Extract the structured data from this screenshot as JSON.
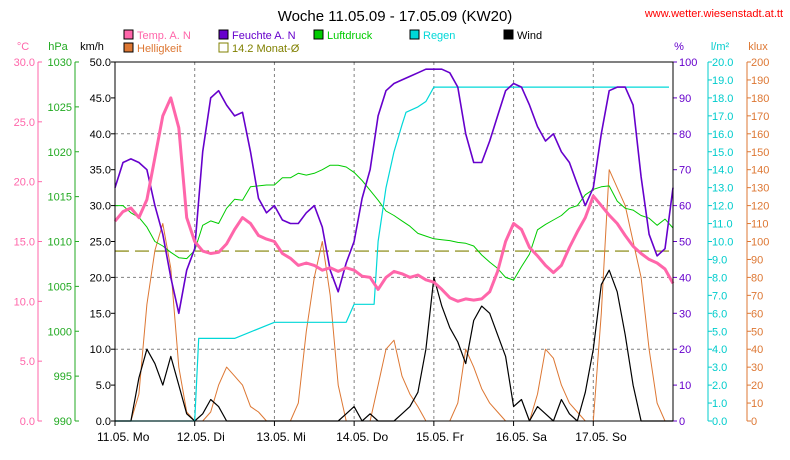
{
  "title": "Woche 11.05.09 - 17.05.09 (KW20)",
  "source_url": "www.wetter.wiesenstadt.at.tt",
  "legend": [
    {
      "label": "Temp. A. N",
      "color": "#ff66aa"
    },
    {
      "label": "Feuchte A. N",
      "color": "#6600cc"
    },
    {
      "label": "Luftdruck",
      "color": "#00cc00"
    },
    {
      "label": "Regen",
      "color": "#00d8d8"
    },
    {
      "label": "Wind",
      "color": "#000000"
    },
    {
      "label": "Helligkeit",
      "color": "#dd7733"
    },
    {
      "label": "14.2 Monat-Ø",
      "color": "#808000"
    }
  ],
  "axes": {
    "temp": {
      "unit": "°C",
      "color": "#ff66aa",
      "ticks": [
        "30.0",
        "25.0",
        "20.0",
        "15.0",
        "10.0",
        "5.0",
        "0.0"
      ]
    },
    "pressure": {
      "unit": "hPa",
      "color": "#22aa22",
      "ticks": [
        "1030",
        "1025",
        "1020",
        "1015",
        "1010",
        "1005",
        "1000",
        "995",
        "990"
      ]
    },
    "wind": {
      "unit": "km/h",
      "color": "#000000",
      "ticks": [
        "50.0",
        "45.0",
        "40.0",
        "35.0",
        "30.0",
        "25.0",
        "20.0",
        "15.0",
        "10.0",
        "5.0",
        "0.0"
      ]
    },
    "humidity": {
      "unit": "%",
      "color": "#6600cc",
      "ticks": [
        "100",
        "90",
        "80",
        "70",
        "60",
        "50",
        "40",
        "30",
        "20",
        "10",
        "0"
      ]
    },
    "rain": {
      "unit": "l/m²",
      "color": "#00cccc",
      "ticks": [
        "20.0",
        "19.0",
        "18.0",
        "17.0",
        "16.0",
        "15.0",
        "14.0",
        "13.0",
        "12.0",
        "11.0",
        "10.0",
        "9.0",
        "8.0",
        "7.0",
        "6.0",
        "5.0",
        "4.0",
        "3.0",
        "2.0",
        "1.0",
        "0.0"
      ]
    },
    "light": {
      "unit": "klux",
      "color": "#dd7733",
      "ticks": [
        "200",
        "190",
        "180",
        "170",
        "160",
        "150",
        "140",
        "130",
        "120",
        "110",
        "100",
        "90",
        "80",
        "70",
        "60",
        "50",
        "40",
        "30",
        "20",
        "10",
        "0"
      ]
    }
  },
  "x_labels": [
    "11.05. Mo",
    "12.05. Di",
    "13.05. Mi",
    "14.05. Do",
    "15.05. Fr",
    "16.05. Sa",
    "17.05. So"
  ],
  "chart_data": {
    "type": "line",
    "title": "Woche 11.05.09 - 17.05.09 (KW20)",
    "x_unit": "days since 11.05. 00:00",
    "xlim": [
      0,
      7
    ],
    "reference_line": {
      "label": "14.2 Monat-Ø",
      "axis": "temp",
      "value": 14.2
    },
    "series": [
      {
        "name": "Temp. A. N",
        "axis": "temp",
        "ylim": [
          0,
          30
        ],
        "x": [
          0,
          0.1,
          0.2,
          0.3,
          0.4,
          0.5,
          0.6,
          0.7,
          0.8,
          0.9,
          1.0,
          1.1,
          1.2,
          1.3,
          1.4,
          1.5,
          1.6,
          1.7,
          1.8,
          1.9,
          2.0,
          2.1,
          2.2,
          2.3,
          2.4,
          2.5,
          2.6,
          2.7,
          2.8,
          2.9,
          3.0,
          3.1,
          3.2,
          3.3,
          3.4,
          3.5,
          3.6,
          3.7,
          3.8,
          3.9,
          4.0,
          4.1,
          4.2,
          4.3,
          4.4,
          4.5,
          4.6,
          4.7,
          4.8,
          4.9,
          5.0,
          5.1,
          5.2,
          5.3,
          5.4,
          5.5,
          5.6,
          5.7,
          5.8,
          5.9,
          6.0,
          6.1,
          6.2,
          6.3,
          6.4,
          6.5,
          6.6,
          6.7,
          6.8,
          6.9,
          7.0
        ],
        "y": [
          16.7,
          17.5,
          17.8,
          17.0,
          18.5,
          22.0,
          25.5,
          27.0,
          24.5,
          17.0,
          15.0,
          14.2,
          14.0,
          14.1,
          14.8,
          16.0,
          17.0,
          16.5,
          15.5,
          15.2,
          15.0,
          14.0,
          13.6,
          13.0,
          13.2,
          13.0,
          12.6,
          12.8,
          12.5,
          12.8,
          12.6,
          12.1,
          12.0,
          11.0,
          12.0,
          12.5,
          12.3,
          12.0,
          12.2,
          11.8,
          11.6,
          11.0,
          10.3,
          10.0,
          10.2,
          10.1,
          10.2,
          10.8,
          12.5,
          15.0,
          16.5,
          16.0,
          14.5,
          13.8,
          13.0,
          12.4,
          13.0,
          14.5,
          15.8,
          17.0,
          18.8,
          18.0,
          17.2,
          16.5,
          15.5,
          14.6,
          14.0,
          13.5,
          13.2,
          12.7,
          11.5
        ]
      },
      {
        "name": "Feuchte A. N",
        "axis": "humidity",
        "ylim": [
          0,
          100
        ],
        "x": [
          0,
          0.1,
          0.2,
          0.3,
          0.4,
          0.5,
          0.6,
          0.7,
          0.8,
          0.9,
          1.0,
          1.1,
          1.2,
          1.3,
          1.4,
          1.5,
          1.6,
          1.7,
          1.8,
          1.9,
          2.0,
          2.1,
          2.2,
          2.3,
          2.4,
          2.5,
          2.6,
          2.7,
          2.8,
          2.9,
          3.0,
          3.1,
          3.2,
          3.3,
          3.4,
          3.5,
          3.6,
          3.7,
          3.8,
          3.9,
          4.0,
          4.1,
          4.2,
          4.3,
          4.4,
          4.5,
          4.6,
          4.7,
          4.8,
          4.9,
          5.0,
          5.1,
          5.2,
          5.3,
          5.4,
          5.5,
          5.6,
          5.7,
          5.8,
          5.9,
          6.0,
          6.1,
          6.2,
          6.3,
          6.4,
          6.5,
          6.6,
          6.7,
          6.8,
          6.9,
          7.0
        ],
        "y": [
          65,
          72,
          73,
          72,
          70,
          60,
          52,
          40,
          30,
          42,
          48,
          75,
          90,
          92,
          88,
          85,
          86,
          75,
          62,
          58,
          60,
          56,
          55,
          55,
          58,
          60,
          54,
          42,
          36,
          44,
          50,
          62,
          70,
          85,
          92,
          94,
          95,
          96,
          97,
          98,
          98,
          98,
          97,
          93,
          80,
          72,
          72,
          78,
          85,
          92,
          94,
          93,
          88,
          82,
          78,
          80,
          75,
          72,
          66,
          60,
          65,
          80,
          92,
          93,
          93,
          88,
          68,
          52,
          46,
          48,
          65
        ]
      },
      {
        "name": "Luftdruck",
        "axis": "pressure",
        "ylim": [
          990,
          1030
        ],
        "x": [
          0,
          0.1,
          0.2,
          0.3,
          0.4,
          0.5,
          0.6,
          0.7,
          0.8,
          0.9,
          1.0,
          1.1,
          1.2,
          1.3,
          1.4,
          1.5,
          1.6,
          1.7,
          1.8,
          1.9,
          2.0,
          2.1,
          2.2,
          2.3,
          2.4,
          2.5,
          2.6,
          2.7,
          2.8,
          2.9,
          3.0,
          3.1,
          3.2,
          3.3,
          3.4,
          3.5,
          3.6,
          3.7,
          3.8,
          3.9,
          4.0,
          4.1,
          4.2,
          4.3,
          4.4,
          4.5,
          4.6,
          4.7,
          4.8,
          4.9,
          5.0,
          5.1,
          5.2,
          5.3,
          5.4,
          5.5,
          5.6,
          5.7,
          5.8,
          5.9,
          6.0,
          6.1,
          6.2,
          6.3,
          6.4,
          6.5,
          6.6,
          6.7,
          6.8,
          6.9,
          7.0
        ],
        "y": [
          1014.0,
          1014.0,
          1013.2,
          1012.7,
          1011.6,
          1010.0,
          1009.5,
          1008.8,
          1008.2,
          1008.1,
          1009.0,
          1011.8,
          1012.3,
          1012.0,
          1013.7,
          1014.7,
          1014.6,
          1016.1,
          1016.2,
          1016.3,
          1016.3,
          1017.1,
          1017.1,
          1017.6,
          1017.4,
          1017.6,
          1018.0,
          1018.5,
          1018.5,
          1018.3,
          1017.7,
          1016.8,
          1015.7,
          1014.6,
          1013.4,
          1012.9,
          1012.3,
          1011.7,
          1010.9,
          1010.6,
          1010.3,
          1010.2,
          1010.1,
          1009.9,
          1009.8,
          1009.5,
          1008.5,
          1007.7,
          1007.0,
          1006.0,
          1005.7,
          1007.2,
          1008.6,
          1011.3,
          1011.9,
          1012.4,
          1012.9,
          1013.7,
          1014.0,
          1015.2,
          1015.8,
          1016.1,
          1016.2,
          1014.5,
          1013.7,
          1013.5,
          1012.9,
          1012.6,
          1011.8,
          1012.5,
          1011.5
        ]
      },
      {
        "name": "Regen",
        "axis": "rain",
        "ylim": [
          0,
          20
        ],
        "x": [
          0,
          1.0,
          1.05,
          1.5,
          2.0,
          2.1,
          2.5,
          2.9,
          3.0,
          3.25,
          3.3,
          3.4,
          3.5,
          3.6,
          3.65,
          3.8,
          3.9,
          4.0,
          4.1,
          4.2,
          4.5,
          4.9,
          5.0,
          6.0,
          6.95
        ],
        "y": [
          0,
          0,
          4.6,
          4.6,
          5.5,
          5.5,
          5.5,
          5.5,
          6.5,
          6.5,
          10.0,
          13.0,
          15.0,
          16.5,
          17.2,
          17.5,
          17.8,
          18.6,
          18.6,
          18.6,
          18.6,
          18.6,
          18.6,
          18.6,
          18.6
        ]
      },
      {
        "name": "Wind",
        "axis": "wind",
        "ylim": [
          0,
          50
        ],
        "x": [
          0,
          0.1,
          0.2,
          0.3,
          0.4,
          0.5,
          0.6,
          0.7,
          0.8,
          0.9,
          1.0,
          1.1,
          1.2,
          1.3,
          1.4,
          1.5,
          1.6,
          1.7,
          1.8,
          1.9,
          2.0,
          2.1,
          2.2,
          2.3,
          2.4,
          2.5,
          2.6,
          2.7,
          2.8,
          2.9,
          3.0,
          3.1,
          3.2,
          3.3,
          3.4,
          3.5,
          3.6,
          3.7,
          3.8,
          3.9,
          4.0,
          4.1,
          4.2,
          4.3,
          4.4,
          4.5,
          4.6,
          4.7,
          4.8,
          4.9,
          5.0,
          5.1,
          5.2,
          5.3,
          5.4,
          5.5,
          5.6,
          5.7,
          5.8,
          5.9,
          6.0,
          6.1,
          6.2,
          6.3,
          6.4,
          6.5,
          6.6,
          6.7,
          6.8,
          6.9,
          7.0
        ],
        "y": [
          0,
          0,
          0,
          6,
          10,
          8,
          5,
          9,
          5,
          1,
          0,
          1,
          3,
          2,
          0,
          0,
          0,
          0,
          0,
          0,
          0,
          0,
          0,
          0,
          0,
          0,
          0,
          0,
          0,
          1,
          2,
          0,
          1,
          0,
          0,
          0,
          1,
          2,
          4,
          10,
          20,
          16,
          13,
          11,
          8,
          14,
          16,
          15,
          12,
          9,
          2,
          3,
          0,
          2,
          1,
          0,
          3,
          1,
          0,
          4,
          10,
          19,
          21,
          18,
          12,
          5,
          0,
          0,
          0,
          0,
          0
        ]
      },
      {
        "name": "Helligkeit",
        "axis": "light",
        "ylim": [
          0,
          200
        ],
        "x": [
          0,
          0.1,
          0.2,
          0.3,
          0.4,
          0.5,
          0.6,
          0.7,
          0.8,
          0.9,
          1.0,
          1.1,
          1.2,
          1.3,
          1.4,
          1.5,
          1.6,
          1.7,
          1.8,
          1.9,
          2.0,
          2.1,
          2.2,
          2.3,
          2.4,
          2.5,
          2.6,
          2.7,
          2.8,
          2.9,
          3.0,
          3.1,
          3.2,
          3.3,
          3.4,
          3.5,
          3.6,
          3.7,
          3.8,
          3.9,
          4.0,
          4.1,
          4.2,
          4.3,
          4.4,
          4.5,
          4.6,
          4.7,
          4.8,
          4.9,
          5.0,
          5.1,
          5.2,
          5.3,
          5.4,
          5.5,
          5.6,
          5.7,
          5.8,
          5.9,
          6.0,
          6.1,
          6.2,
          6.3,
          6.4,
          6.5,
          6.6,
          6.7,
          6.8,
          6.9,
          7.0
        ],
        "y": [
          0,
          0,
          0,
          15,
          65,
          95,
          110,
          85,
          30,
          5,
          0,
          0,
          5,
          20,
          30,
          25,
          20,
          8,
          5,
          0,
          0,
          0,
          0,
          10,
          50,
          80,
          100,
          70,
          20,
          0,
          0,
          0,
          0,
          20,
          40,
          45,
          25,
          15,
          8,
          0,
          0,
          0,
          0,
          10,
          40,
          30,
          18,
          10,
          5,
          0,
          0,
          0,
          0,
          15,
          40,
          35,
          20,
          10,
          5,
          0,
          0,
          60,
          140,
          130,
          120,
          100,
          80,
          40,
          10,
          0,
          0
        ]
      }
    ]
  }
}
